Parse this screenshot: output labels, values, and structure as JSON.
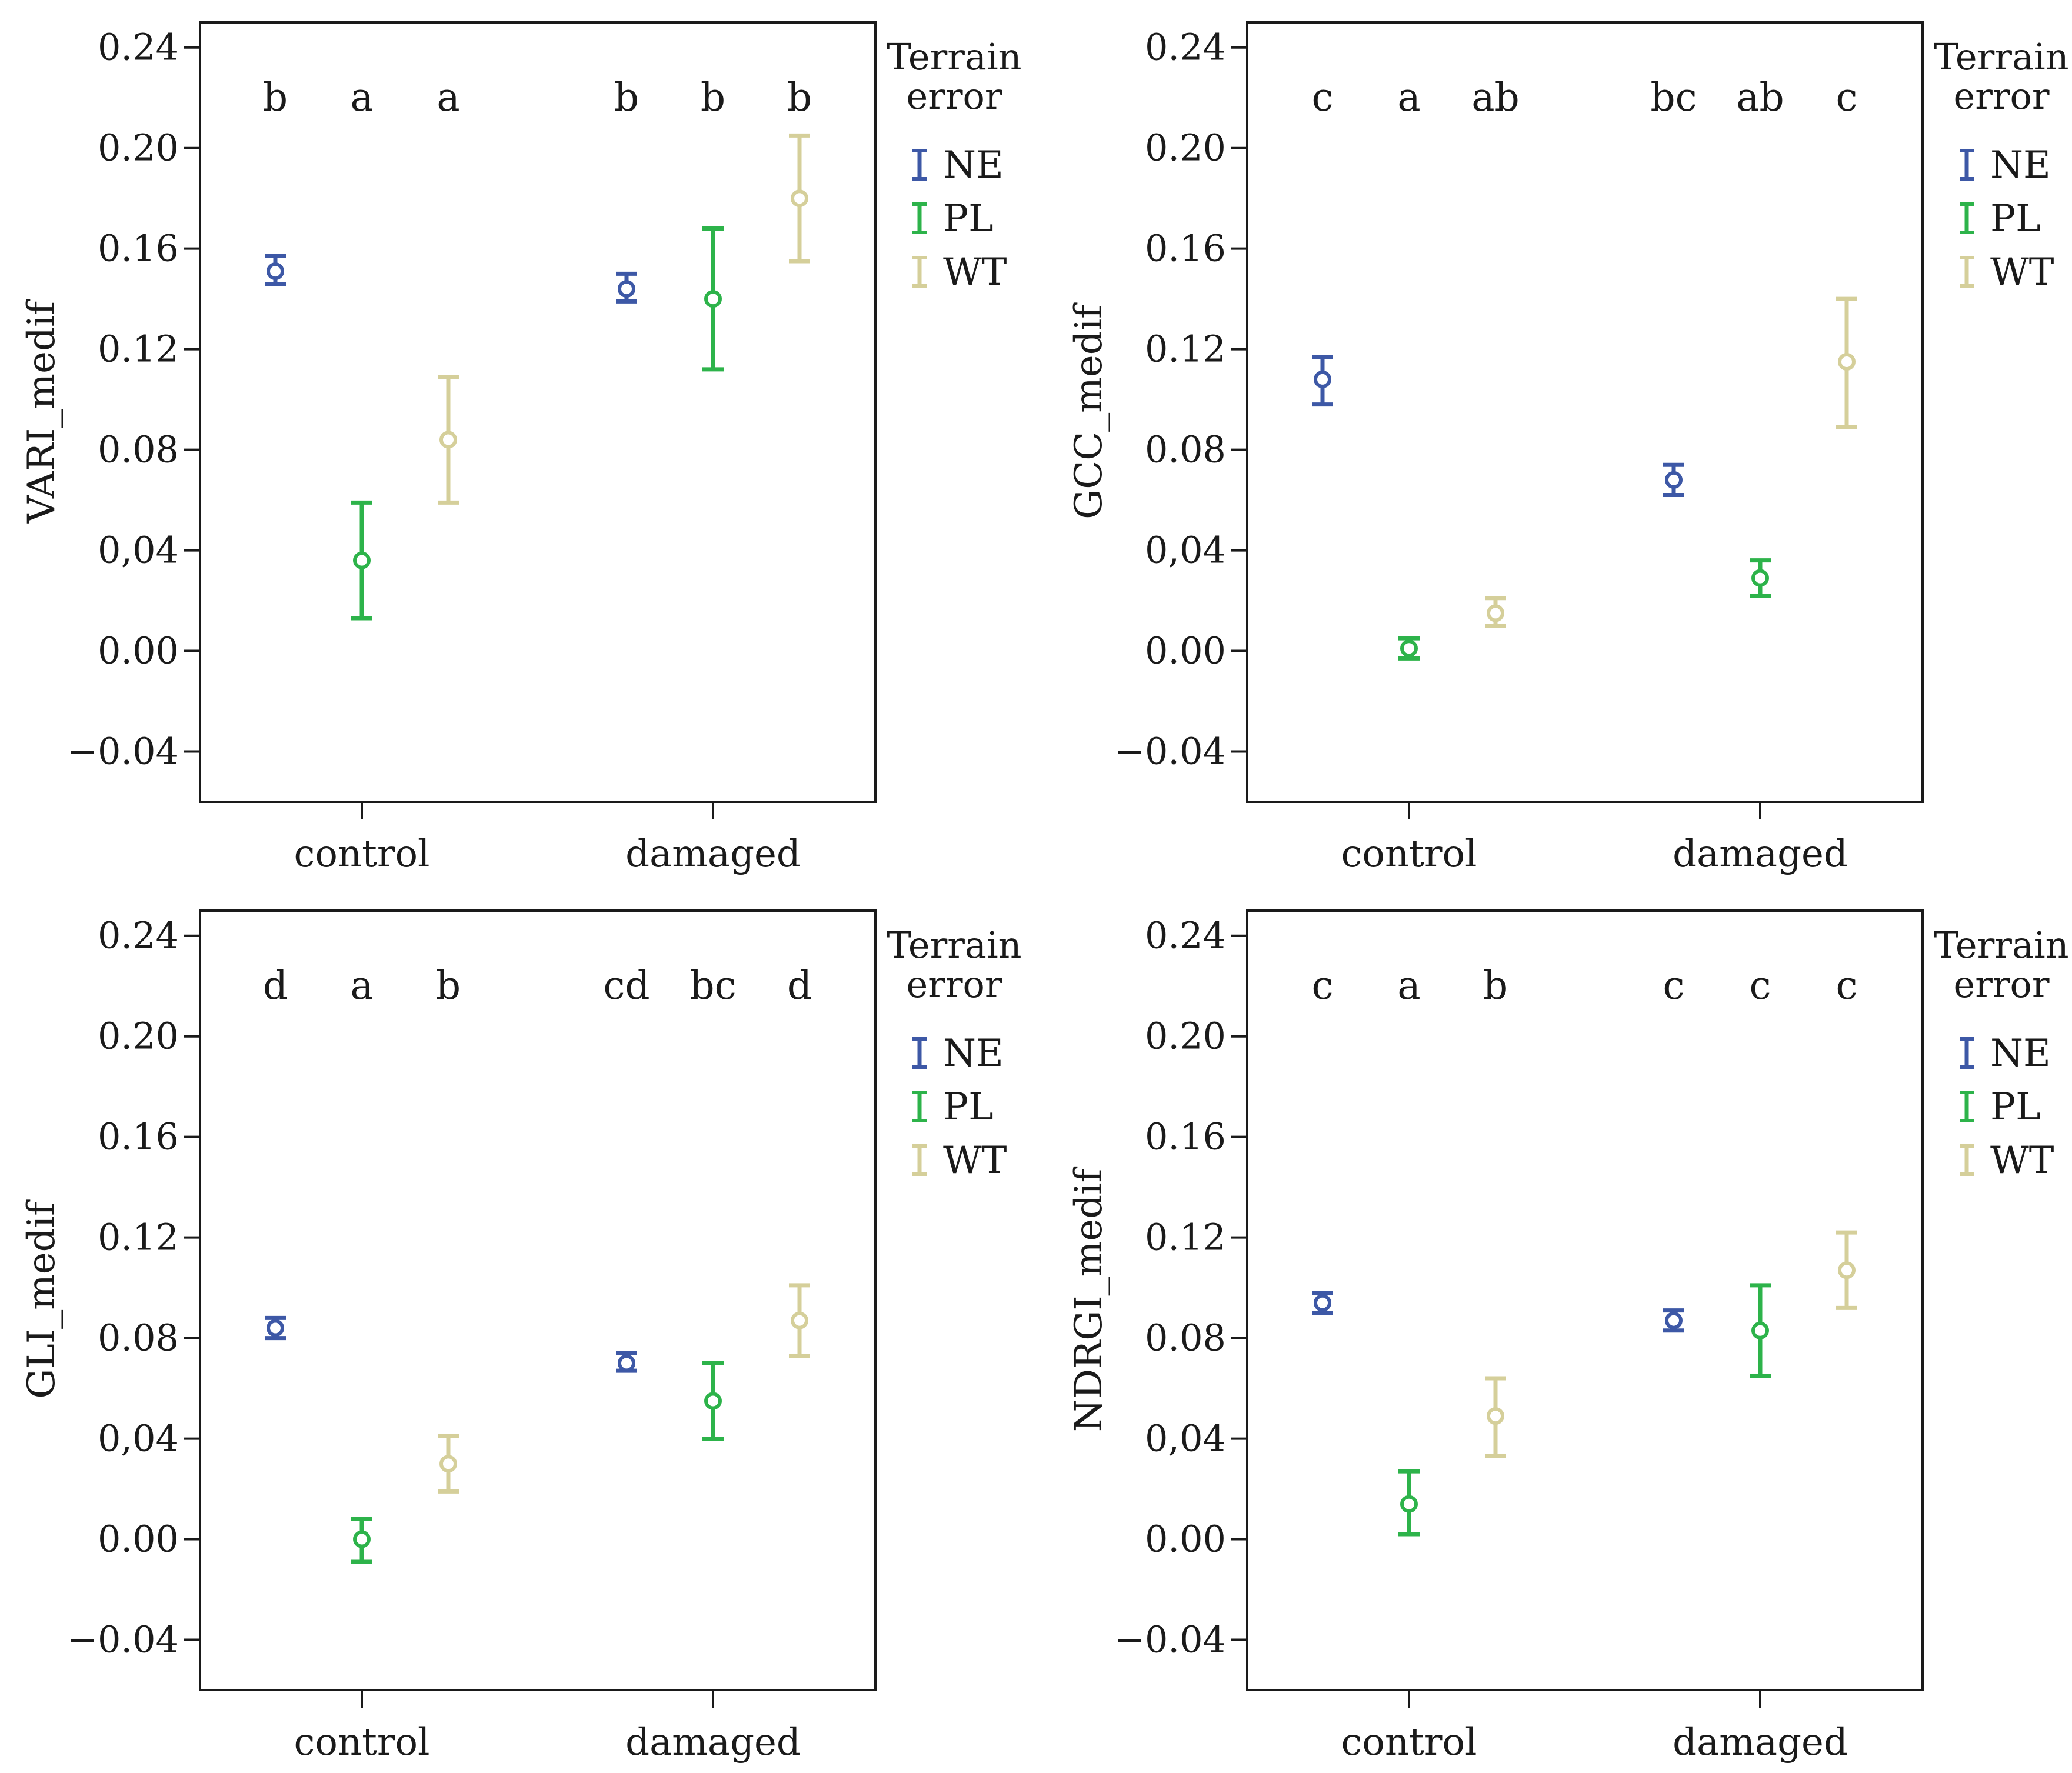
{
  "chart_data": [
    {
      "type": "scatter",
      "subtype": "error-bar",
      "ylabel": "VARI_medif",
      "xlabel": "",
      "categories": [
        "control",
        "damaged"
      ],
      "ylim": [
        -0.06,
        0.25
      ],
      "yticks": [
        "0.24",
        "0.20",
        "0.16",
        "0.12",
        "0.08",
        "0,04",
        "0.00",
        "−0.04"
      ],
      "ytick_values": [
        0.24,
        0.2,
        0.16,
        0.12,
        0.08,
        0.04,
        0.0,
        -0.04
      ],
      "letters": [
        "b",
        "a",
        "a",
        "b",
        "b",
        "b"
      ],
      "legend": {
        "title_line1": "Terrain",
        "title_line2": "error",
        "labels": [
          "NE",
          "PL",
          "WT"
        ]
      },
      "series": [
        {
          "name": "NE",
          "means": [
            0.151,
            0.144
          ],
          "lower": [
            0.146,
            0.139
          ],
          "upper": [
            0.157,
            0.15
          ]
        },
        {
          "name": "PL",
          "means": [
            0.036,
            0.14
          ],
          "lower": [
            0.013,
            0.112
          ],
          "upper": [
            0.059,
            0.168
          ]
        },
        {
          "name": "WT",
          "means": [
            0.084,
            0.18
          ],
          "lower": [
            0.059,
            0.155
          ],
          "upper": [
            0.109,
            0.205
          ]
        }
      ]
    },
    {
      "type": "scatter",
      "subtype": "error-bar",
      "ylabel": "GCC_medif",
      "xlabel": "",
      "categories": [
        "control",
        "damaged"
      ],
      "ylim": [
        -0.06,
        0.25
      ],
      "yticks": [
        "0.24",
        "0.20",
        "0.16",
        "0.12",
        "0.08",
        "0,04",
        "0.00",
        "−0.04"
      ],
      "ytick_values": [
        0.24,
        0.2,
        0.16,
        0.12,
        0.08,
        0.04,
        0.0,
        -0.04
      ],
      "letters": [
        "c",
        "a",
        "ab",
        "bc",
        "ab",
        "c"
      ],
      "legend": {
        "title_line1": "Terrain",
        "title_line2": "error",
        "labels": [
          "NE",
          "PL",
          "WT"
        ]
      },
      "series": [
        {
          "name": "NE",
          "means": [
            0.108,
            0.068
          ],
          "lower": [
            0.098,
            0.062
          ],
          "upper": [
            0.117,
            0.074
          ]
        },
        {
          "name": "PL",
          "means": [
            0.001,
            0.029
          ],
          "lower": [
            -0.003,
            0.022
          ],
          "upper": [
            0.005,
            0.036
          ]
        },
        {
          "name": "WT",
          "means": [
            0.015,
            0.115
          ],
          "lower": [
            0.01,
            0.089
          ],
          "upper": [
            0.021,
            0.14
          ]
        }
      ]
    },
    {
      "type": "scatter",
      "subtype": "error-bar",
      "ylabel": "GLI_medif",
      "xlabel": "",
      "categories": [
        "control",
        "damaged"
      ],
      "ylim": [
        -0.06,
        0.25
      ],
      "yticks": [
        "0.24",
        "0.20",
        "0.16",
        "0.12",
        "0.08",
        "0,04",
        "0.00",
        "−0.04"
      ],
      "ytick_values": [
        0.24,
        0.2,
        0.16,
        0.12,
        0.08,
        0.04,
        0.0,
        -0.04
      ],
      "letters": [
        "d",
        "a",
        "b",
        "cd",
        "bc",
        "d"
      ],
      "legend": {
        "title_line1": "Terrain",
        "title_line2": "error",
        "labels": [
          "NE",
          "PL",
          "WT"
        ]
      },
      "series": [
        {
          "name": "NE",
          "means": [
            0.084,
            0.07
          ],
          "lower": [
            0.08,
            0.067
          ],
          "upper": [
            0.088,
            0.074
          ]
        },
        {
          "name": "PL",
          "means": [
            0.0,
            0.055
          ],
          "lower": [
            -0.009,
            0.04
          ],
          "upper": [
            0.008,
            0.07
          ]
        },
        {
          "name": "WT",
          "means": [
            0.03,
            0.087
          ],
          "lower": [
            0.019,
            0.073
          ],
          "upper": [
            0.041,
            0.101
          ]
        }
      ]
    },
    {
      "type": "scatter",
      "subtype": "error-bar",
      "ylabel": "NDRGI_medif",
      "xlabel": "",
      "categories": [
        "control",
        "damaged"
      ],
      "ylim": [
        -0.06,
        0.25
      ],
      "yticks": [
        "0.24",
        "0.20",
        "0.16",
        "0.12",
        "0.08",
        "0,04",
        "0.00",
        "−0.04"
      ],
      "ytick_values": [
        0.24,
        0.2,
        0.16,
        0.12,
        0.08,
        0.04,
        0.0,
        -0.04
      ],
      "letters": [
        "c",
        "a",
        "b",
        "c",
        "c",
        "c"
      ],
      "legend": {
        "title_line1": "Terrain",
        "title_line2": "error",
        "labels": [
          "NE",
          "PL",
          "WT"
        ]
      },
      "series": [
        {
          "name": "NE",
          "means": [
            0.094,
            0.087
          ],
          "lower": [
            0.09,
            0.083
          ],
          "upper": [
            0.098,
            0.091
          ]
        },
        {
          "name": "PL",
          "means": [
            0.014,
            0.083
          ],
          "lower": [
            0.002,
            0.065
          ],
          "upper": [
            0.027,
            0.101
          ]
        },
        {
          "name": "WT",
          "means": [
            0.049,
            0.107
          ],
          "lower": [
            0.033,
            0.092
          ],
          "upper": [
            0.064,
            0.122
          ]
        }
      ]
    }
  ],
  "colors": {
    "NE": "#3d58a6",
    "PL": "#2db34a",
    "WT": "#d5cf9a",
    "axis": "#1a1a1a"
  }
}
